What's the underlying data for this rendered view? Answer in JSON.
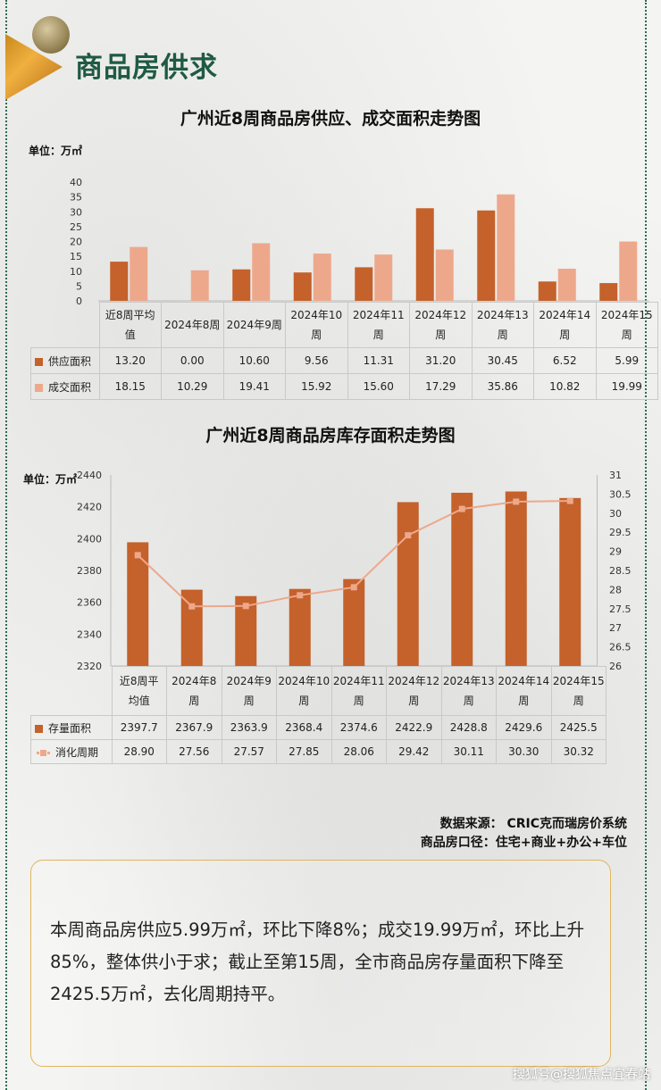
{
  "section_title": "商品房供求",
  "chart1": {
    "title": "广州近8周商品房供应、成交面积走势图",
    "unit": "单位：万㎡"
  },
  "chart2": {
    "title": "广州近8周商品房库存面积走势图",
    "unit": "单位：万㎡"
  },
  "colors": {
    "dark": "#c5612a",
    "light": "#eda88c",
    "green": "#1f5a43"
  },
  "chart_data": [
    {
      "type": "bar",
      "title": "广州近8周商品房供应、成交面积走势图",
      "ylabel": "单位：万㎡",
      "ylim": [
        0,
        40
      ],
      "yticks": [
        "0",
        "5",
        "10",
        "15",
        "20",
        "25",
        "30",
        "35",
        "40"
      ],
      "categories": [
        [
          "近8周平均",
          "值"
        ],
        [
          "2024年8周"
        ],
        [
          "2024年9周"
        ],
        [
          "2024年10",
          "周"
        ],
        [
          "2024年11",
          "周"
        ],
        [
          "2024年12",
          "周"
        ],
        [
          "2024年13",
          "周"
        ],
        [
          "2024年14",
          "周"
        ],
        [
          "2024年15",
          "周"
        ]
      ],
      "series": [
        {
          "name": "供应面积",
          "values": [
            13.2,
            0.0,
            10.6,
            9.56,
            11.31,
            31.2,
            30.45,
            6.52,
            5.99
          ],
          "labels": [
            "13.20",
            "0.00",
            "10.60",
            "9.56",
            "11.31",
            "31.20",
            "30.45",
            "6.52",
            "5.99"
          ]
        },
        {
          "name": "成交面积",
          "values": [
            18.15,
            10.29,
            19.41,
            15.92,
            15.6,
            17.29,
            35.86,
            10.82,
            19.99
          ],
          "labels": [
            "18.15",
            "10.29",
            "19.41",
            "15.92",
            "15.60",
            "17.29",
            "35.86",
            "10.82",
            "19.99"
          ]
        }
      ],
      "grid": false,
      "legend": "table-below"
    },
    {
      "type": "bar",
      "title": "广州近8周商品房库存面积走势图",
      "ylabel": "单位：万㎡",
      "ylim": [
        2320,
        2440
      ],
      "yticks": [
        "2320",
        "2340",
        "2360",
        "2380",
        "2400",
        "2420",
        "2440"
      ],
      "y2lim": [
        26,
        31
      ],
      "y2ticks": [
        "26",
        "26.5",
        "27",
        "27.5",
        "28",
        "28.5",
        "29",
        "29.5",
        "30",
        "30.5",
        "31"
      ],
      "categories": [
        [
          "近8周平",
          "均值"
        ],
        [
          "2024年8",
          "周"
        ],
        [
          "2024年9",
          "周"
        ],
        [
          "2024年10",
          "周"
        ],
        [
          "2024年11",
          "周"
        ],
        [
          "2024年12",
          "周"
        ],
        [
          "2024年13",
          "周"
        ],
        [
          "2024年14",
          "周"
        ],
        [
          "2024年15",
          "周"
        ]
      ],
      "series": [
        {
          "name": "存量面积",
          "kind": "bar",
          "axis": "left",
          "values": [
            2397.7,
            2367.9,
            2363.9,
            2368.4,
            2374.6,
            2422.9,
            2428.8,
            2429.6,
            2425.5
          ],
          "labels": [
            "2397.7",
            "2367.9",
            "2363.9",
            "2368.4",
            "2374.6",
            "2422.9",
            "2428.8",
            "2429.6",
            "2425.5"
          ]
        },
        {
          "name": "消化周期",
          "kind": "line",
          "axis": "right",
          "values": [
            28.9,
            27.56,
            27.57,
            27.85,
            28.06,
            29.42,
            30.11,
            30.3,
            30.32
          ],
          "labels": [
            "28.90",
            "27.56",
            "27.57",
            "27.85",
            "28.06",
            "29.42",
            "30.11",
            "30.30",
            "30.32"
          ]
        }
      ],
      "grid": false,
      "legend": "table-below"
    }
  ],
  "source": {
    "line1": "数据来源： CRIC克而瑞房价系统",
    "line2": "商品房口径：住宅+商业+办公+车位"
  },
  "summary": "本周商品房供应5.99万㎡，环比下降8%；成交19.99万㎡，环比上升85%，整体供小于求；截止至第15周，全市商品房存量面积下降至2425.5万㎡，去化周期持平。",
  "watermark": "搜狐号@搜狐焦点宜春站"
}
